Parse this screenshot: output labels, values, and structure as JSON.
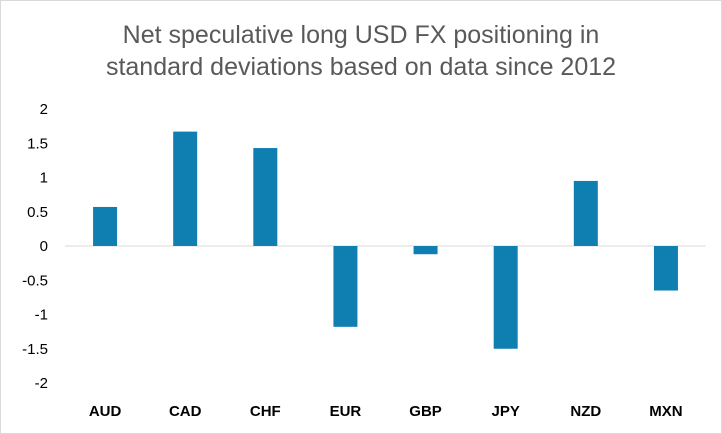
{
  "chart_data": {
    "type": "bar",
    "title_lines": [
      "Net speculative long USD FX positioning in",
      "standard deviations based on data since 2012"
    ],
    "categories": [
      "AUD",
      "CAD",
      "CHF",
      "EUR",
      "GBP",
      "JPY",
      "NZD",
      "MXN"
    ],
    "values": [
      0.57,
      1.67,
      1.43,
      -1.18,
      -0.12,
      -1.5,
      0.95,
      -0.65
    ],
    "yticks": [
      "2",
      "1.5",
      "1",
      "0.5",
      "0",
      "-0.5",
      "-1",
      "-1.5",
      "-2"
    ],
    "ylim": [
      -2,
      2
    ],
    "xlabel": "",
    "ylabel": "",
    "grid": false,
    "legend": "none",
    "bar_color": "#0f7fb1"
  }
}
